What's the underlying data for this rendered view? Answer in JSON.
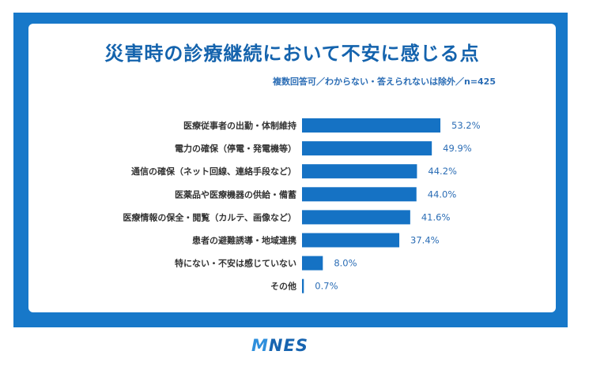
{
  "header": {
    "title": "災害時の診療継続において不安に感じる点",
    "subtitle": "複数回答可／わからない・答えられないは除外／n=425"
  },
  "footer": {
    "logo_m": "M",
    "logo_rest": "NES"
  },
  "colors": {
    "frame": "#1778c9",
    "bar": "#1572c4",
    "title": "#1463ad"
  },
  "chart_data": {
    "type": "bar",
    "orientation": "horizontal",
    "title": "災害時の診療継続において不安に感じる点",
    "subtitle": "複数回答可／わからない・答えられないは除外／n=425",
    "xlabel": "",
    "ylabel": "",
    "unit": "%",
    "xlim": [
      0,
      100
    ],
    "grid": false,
    "categories": [
      "医療従事者の出勤・体制維持",
      "電力の確保（停電・発電機等）",
      "通信の確保（ネット回線、連絡手段など）",
      "医薬品や医療機器の供給・備蓄",
      "医療情報の保全・閲覧（カルテ、画像など）",
      "患者の避難誘導・地域連携",
      "特にない・不安は感じていない",
      "その他"
    ],
    "values": [
      53.2,
      49.9,
      44.2,
      44.0,
      41.6,
      37.4,
      8.0,
      0.7
    ],
    "value_labels": [
      "53.2%",
      "49.9%",
      "44.2%",
      "44.0%",
      "41.6%",
      "37.4%",
      "8.0%",
      "0.7%"
    ]
  }
}
